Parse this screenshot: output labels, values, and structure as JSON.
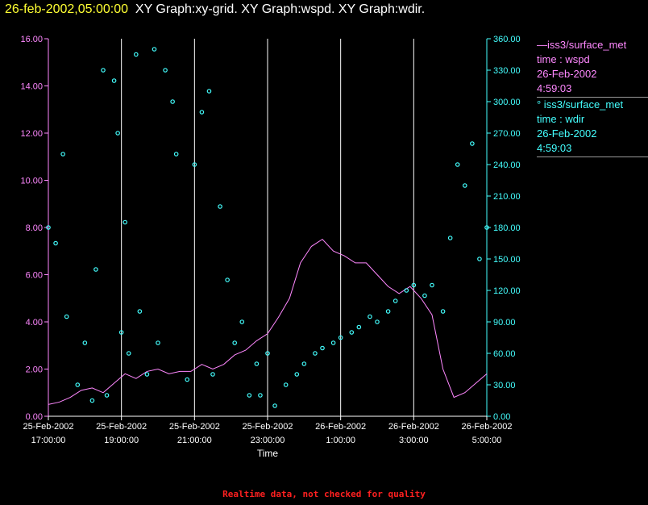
{
  "header": {
    "timestamp": "26-feb-2002,05:00:00",
    "graphs": "XY Graph:xy-grid.  XY Graph:wspd.  XY Graph:wdir."
  },
  "legend": {
    "wspd": {
      "line1": "—iss3/surface_met",
      "line2": "time : wspd",
      "line3": "26-Feb-2002",
      "line4": "4:59:03"
    },
    "wdir": {
      "line1": "° iss3/surface_met",
      "line2": "time : wdir",
      "line3": "26-Feb-2002",
      "line4": "4:59:03"
    }
  },
  "footer": "Realtime data, not checked for quality",
  "colors": {
    "wspd": "#ff88ff",
    "wdir": "#44ffff",
    "grid": "#ffffff",
    "header_time": "#ffff33",
    "footer": "#ff2020"
  },
  "chart_data": {
    "type": "line",
    "xlabel": "Time",
    "x_ticks": [
      {
        "date": "25-Feb-2002",
        "time": "17:00:00"
      },
      {
        "date": "25-Feb-2002",
        "time": "19:00:00"
      },
      {
        "date": "25-Feb-2002",
        "time": "21:00:00"
      },
      {
        "date": "25-Feb-2002",
        "time": "23:00:00"
      },
      {
        "date": "26-Feb-2002",
        "time": "1:00:00"
      },
      {
        "date": "26-Feb-2002",
        "time": "3:00:00"
      },
      {
        "date": "26-Feb-2002",
        "time": "5:00:00"
      }
    ],
    "xlim": [
      "25-Feb-2002 17:00:00",
      "26-Feb-2002 05:00:00"
    ],
    "y_left": {
      "ylim": [
        0,
        16
      ],
      "ticks": [
        "0.00",
        "2.00",
        "4.00",
        "6.00",
        "8.00",
        "10.00",
        "12.00",
        "14.00",
        "16.00"
      ],
      "color": "#ff88ff"
    },
    "y_right": {
      "ylim": [
        0,
        360
      ],
      "ticks": [
        "0.00",
        "30.00",
        "60.00",
        "90.00",
        "120.00",
        "150.00",
        "180.00",
        "210.00",
        "240.00",
        "270.00",
        "300.00",
        "330.00",
        "360.00"
      ],
      "color": "#44ffff"
    },
    "series": [
      {
        "name": "iss3/surface_met time : wspd",
        "axis": "left",
        "style": "line",
        "x_hours": [
          0,
          0.3,
          0.6,
          0.9,
          1.2,
          1.5,
          1.8,
          2.1,
          2.4,
          2.7,
          3.0,
          3.3,
          3.6,
          3.9,
          4.2,
          4.5,
          4.8,
          5.1,
          5.4,
          5.7,
          6.0,
          6.3,
          6.6,
          6.9,
          7.2,
          7.5,
          7.8,
          8.1,
          8.4,
          8.7,
          9.0,
          9.3,
          9.6,
          9.9,
          10.2,
          10.5,
          10.8,
          11.1,
          11.4,
          11.7,
          12.0
        ],
        "values": [
          0.5,
          0.6,
          0.8,
          1.1,
          1.2,
          1.0,
          1.4,
          1.8,
          1.6,
          1.9,
          2.0,
          1.8,
          1.9,
          1.9,
          2.2,
          2.0,
          2.2,
          2.6,
          2.8,
          3.2,
          3.5,
          4.2,
          5.0,
          6.5,
          7.2,
          7.5,
          7.0,
          6.8,
          6.5,
          6.5,
          6.0,
          5.5,
          5.2,
          5.5,
          5.0,
          4.3,
          2.0,
          0.8,
          1.0,
          1.4,
          1.8
        ]
      },
      {
        "name": "iss3/surface_met time : wdir",
        "axis": "right",
        "style": "scatter",
        "x_hours": [
          0.0,
          0.2,
          0.4,
          0.5,
          0.8,
          1.0,
          1.2,
          1.3,
          1.5,
          1.6,
          1.8,
          1.9,
          2.0,
          2.1,
          2.2,
          2.4,
          2.5,
          2.7,
          2.9,
          3.0,
          3.2,
          3.4,
          3.5,
          3.8,
          4.0,
          4.2,
          4.4,
          4.5,
          4.7,
          4.9,
          5.1,
          5.3,
          5.5,
          5.7,
          5.8,
          6.0,
          6.2,
          6.5,
          6.8,
          7.0,
          7.3,
          7.5,
          7.8,
          8.0,
          8.3,
          8.5,
          8.8,
          9.0,
          9.3,
          9.5,
          9.8,
          10.0,
          10.3,
          10.5,
          10.8,
          11.0,
          11.2,
          11.4,
          11.6,
          11.8,
          12.0
        ],
        "values": [
          180,
          165,
          250,
          95,
          30,
          70,
          15,
          140,
          330,
          20,
          320,
          270,
          80,
          185,
          60,
          345,
          100,
          40,
          350,
          70,
          330,
          300,
          250,
          35,
          240,
          290,
          310,
          40,
          200,
          130,
          70,
          90,
          20,
          50,
          20,
          60,
          10,
          30,
          40,
          50,
          60,
          65,
          70,
          75,
          80,
          85,
          95,
          90,
          100,
          110,
          120,
          125,
          115,
          125,
          100,
          170,
          240,
          220,
          260,
          150,
          180
        ]
      }
    ]
  }
}
